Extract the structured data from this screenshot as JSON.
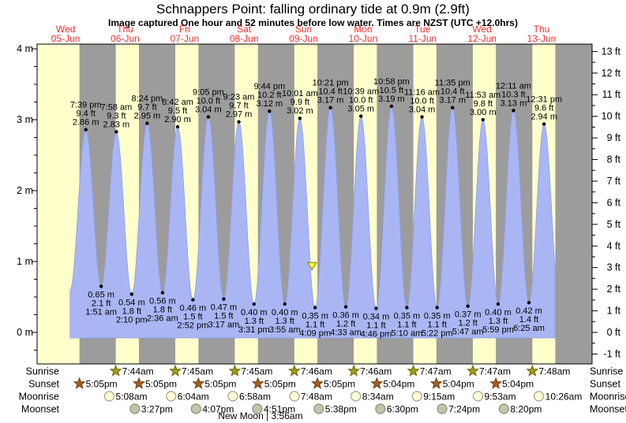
{
  "header": {
    "title": "Schnappers Point: falling  ordinary tide at 0.9m (2.9ft)",
    "subtitle": "Image captured One hour and 52 minutes before low water. Times are NZST (UTC +12.0hrs)"
  },
  "chart_data": {
    "type": "area",
    "title": "Schnappers Point: falling  ordinary tide at 0.9m (2.9ft)",
    "days": [
      {
        "dow": "Wed",
        "date": "05-Jun"
      },
      {
        "dow": "Thu",
        "date": "06-Jun"
      },
      {
        "dow": "Fri",
        "date": "07-Jun"
      },
      {
        "dow": "Sat",
        "date": "08-Jun"
      },
      {
        "dow": "Sun",
        "date": "09-Jun"
      },
      {
        "dow": "Mon",
        "date": "10-Jun"
      },
      {
        "dow": "Tue",
        "date": "11-Jun"
      },
      {
        "dow": "Wed",
        "date": "12-Jun"
      },
      {
        "dow": "Thu",
        "date": "13-Jun"
      }
    ],
    "y_left": {
      "unit": "m",
      "min": 0,
      "max": 4,
      "labels": [
        "4 m",
        "3 m",
        "2 m",
        "1 m",
        "0 m"
      ]
    },
    "y_right": {
      "unit": "ft",
      "min": -1,
      "max": 13
    },
    "high_tides": [
      {
        "d": 0,
        "t": "7:39 pm",
        "m": 2.86,
        "ft": "9.4"
      },
      {
        "d": 1,
        "t": "7:58 am",
        "m": 2.83,
        "ft": "9.3"
      },
      {
        "d": 1,
        "t": "8:24 pm",
        "m": 2.95,
        "ft": "9.7"
      },
      {
        "d": 2,
        "t": "8:42 am",
        "m": 2.9,
        "ft": "9.5"
      },
      {
        "d": 2,
        "t": "9:05 pm",
        "m": 3.04,
        "ft": "10.0"
      },
      {
        "d": 3,
        "t": "9:23 am",
        "m": 2.97,
        "ft": "9.7"
      },
      {
        "d": 3,
        "t": "9:44 pm",
        "m": 3.12,
        "ft": "10.2"
      },
      {
        "d": 4,
        "t": "10:01 am",
        "m": 3.02,
        "ft": "9.9"
      },
      {
        "d": 4,
        "t": "10:21 pm",
        "m": 3.17,
        "ft": "10.4"
      },
      {
        "d": 5,
        "t": "10:39 am",
        "m": 3.05,
        "ft": "10.0"
      },
      {
        "d": 5,
        "t": "10:58 pm",
        "m": 3.19,
        "ft": "10.5"
      },
      {
        "d": 6,
        "t": "11:16 am",
        "m": 3.04,
        "ft": "10.0"
      },
      {
        "d": 6,
        "t": "11:35 pm",
        "m": 3.17,
        "ft": "10.4"
      },
      {
        "d": 7,
        "t": "11:53 am",
        "m": 3.0,
        "ft": "9.8"
      },
      {
        "d": 8,
        "t": "12:11 am",
        "m": 3.13,
        "ft": "10.3"
      },
      {
        "d": 8,
        "t": "12:31 pm",
        "m": 2.94,
        "ft": "9.6"
      }
    ],
    "low_tides": [
      {
        "d": 1,
        "t": "1:51 am",
        "m": 0.65,
        "ft": "2.1"
      },
      {
        "d": 1,
        "t": "2:10 pm",
        "m": 0.54,
        "ft": "1.8"
      },
      {
        "d": 2,
        "t": "2:36 am",
        "m": 0.56,
        "ft": "1.8"
      },
      {
        "d": 2,
        "t": "2:52 pm",
        "m": 0.46,
        "ft": "1.5"
      },
      {
        "d": 3,
        "t": "3:17 am",
        "m": 0.47,
        "ft": "1.5"
      },
      {
        "d": 3,
        "t": "3:31 pm",
        "m": 0.4,
        "ft": "1.3"
      },
      {
        "d": 4,
        "t": "3:55 am",
        "m": 0.4,
        "ft": "1.3"
      },
      {
        "d": 4,
        "t": "4:09 pm",
        "m": 0.35,
        "ft": "1.1"
      },
      {
        "d": 5,
        "t": "4:33 am",
        "m": 0.36,
        "ft": "1.2"
      },
      {
        "d": 5,
        "t": "4:46 pm",
        "m": 0.34,
        "ft": "1.1"
      },
      {
        "d": 6,
        "t": "5:10 am",
        "m": 0.35,
        "ft": "1.1"
      },
      {
        "d": 6,
        "t": "5:22 pm",
        "m": 0.35,
        "ft": "1.1"
      },
      {
        "d": 7,
        "t": "5:47 am",
        "m": 0.37,
        "ft": "1.2"
      },
      {
        "d": 7,
        "t": "5:59 pm",
        "m": 0.4,
        "ft": "1.3"
      },
      {
        "d": 8,
        "t": "6:25 am",
        "m": 0.42,
        "ft": "1.4"
      }
    ],
    "curve_start": {
      "d": 0,
      "t": "1:18 pm",
      "m": 0.6
    },
    "curve_end": {
      "d": 8,
      "t": "6:45 pm",
      "m": 0.45
    },
    "curve_cut": {
      "d": 8,
      "t": "5:04 pm"
    },
    "current_marker": {
      "d": 4,
      "t": "2:54 pm",
      "m": 0.94
    },
    "daylight_model": {
      "sunsets": [
        "5:05pm",
        "5:05pm",
        "5:05pm",
        "5:05pm",
        "5:05pm",
        "5:04pm",
        "5:04pm",
        "5:04pm",
        "5:04pm"
      ],
      "next_sunrises": [
        "7:44am",
        "7:45am",
        "7:45am",
        "7:46am",
        "7:46am",
        "7:47am",
        "7:47am",
        "7:48am",
        "7:48am"
      ]
    },
    "colors": {
      "day_band": "#ffffcc",
      "night_band": "#9c9c9c",
      "tide_fill": "#a9b6f3",
      "tide_edge": "#8b9cf0",
      "date_red": "#f13131",
      "marker_fill": "#ffff33",
      "marker_edge": "#8f8f1a",
      "sunrise_star": "#9d9b1a",
      "sunset_star": "#a55e20",
      "moonrise_fill": "#ffffd9",
      "moonset_fill": "#c4c4ad"
    }
  },
  "almanac": {
    "rows": [
      {
        "label": "Sunrise",
        "icon": "sunrise-star",
        "first_day": 1,
        "times": [
          "7:44am",
          "7:45am",
          "7:45am",
          "7:46am",
          "7:46am",
          "7:47am",
          "7:47am",
          "7:48am"
        ]
      },
      {
        "label": "Sunset",
        "icon": "sunset-star",
        "first_day": 0,
        "times": [
          "5:05pm",
          "5:05pm",
          "5:05pm",
          "5:05pm",
          "5:05pm",
          "5:04pm",
          "5:04pm",
          "5:04pm"
        ]
      },
      {
        "label": "Moonrise",
        "icon": "moonrise-circle",
        "first_day": 1,
        "times": [
          "5:08am",
          "6:04am",
          "6:58am",
          "7:48am",
          "8:34am",
          "9:15am",
          "9:53am",
          "10:26am"
        ]
      },
      {
        "label": "Moonset",
        "icon": "moonset-circle",
        "first_day": 1,
        "times": [
          "3:27pm",
          "4:07pm",
          "4:51pm",
          "5:38pm",
          "6:30pm",
          "7:24pm",
          "8:20pm"
        ]
      }
    ],
    "moon_phase": "New Moon | 3:56am"
  }
}
